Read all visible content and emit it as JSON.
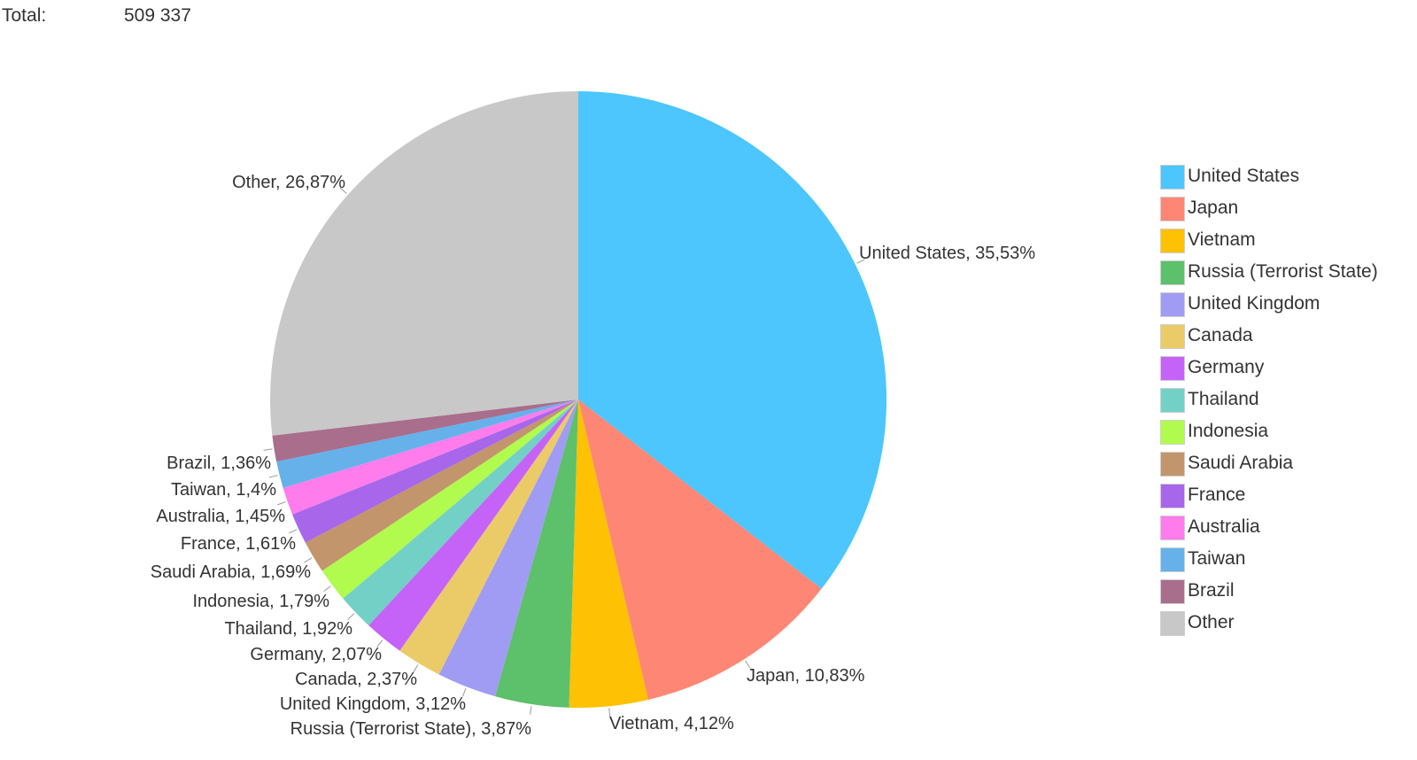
{
  "header": {
    "total_label": "Total:",
    "total_value": "509 337"
  },
  "chart_data": {
    "type": "pie",
    "title": "",
    "slices": [
      {
        "name": "United States",
        "value": 35.53,
        "label": "United States, 35,53%",
        "color": "#4cc6fd"
      },
      {
        "name": "Japan",
        "value": 10.83,
        "label": "Japan, 10,83%",
        "color": "#fd8675"
      },
      {
        "name": "Vietnam",
        "value": 4.12,
        "label": "Vietnam, 4,12%",
        "color": "#fec103"
      },
      {
        "name": "Russia (Terrorist State)",
        "value": 3.87,
        "label": "Russia (Terrorist State), 3,87%",
        "color": "#5dc06b"
      },
      {
        "name": "United Kingdom",
        "value": 3.12,
        "label": "United Kingdom, 3,12%",
        "color": "#a09cf3"
      },
      {
        "name": "Canada",
        "value": 2.37,
        "label": "Canada, 2,37%",
        "color": "#ebcb68"
      },
      {
        "name": "Germany",
        "value": 2.07,
        "label": "Germany, 2,07%",
        "color": "#c563f8"
      },
      {
        "name": "Thailand",
        "value": 1.92,
        "label": "Thailand, 1,92%",
        "color": "#73d0c6"
      },
      {
        "name": "Indonesia",
        "value": 1.79,
        "label": "Indonesia, 1,79%",
        "color": "#b0fb4d"
      },
      {
        "name": "Saudi Arabia",
        "value": 1.69,
        "label": "Saudi Arabia, 1,69%",
        "color": "#c2956c"
      },
      {
        "name": "France",
        "value": 1.61,
        "label": "France, 1,61%",
        "color": "#a866ea"
      },
      {
        "name": "Australia",
        "value": 1.45,
        "label": "Australia, 1,45%",
        "color": "#fe7ceb"
      },
      {
        "name": "Taiwan",
        "value": 1.4,
        "label": "Taiwan, 1,4%",
        "color": "#66b1ea"
      },
      {
        "name": "Brazil",
        "value": 1.36,
        "label": "Brazil, 1,36%",
        "color": "#a86e8c"
      },
      {
        "name": "Other",
        "value": 26.87,
        "label": "Other, 26,87%",
        "color": "#c8c8c8"
      }
    ],
    "legend": {
      "placement": "right"
    }
  }
}
